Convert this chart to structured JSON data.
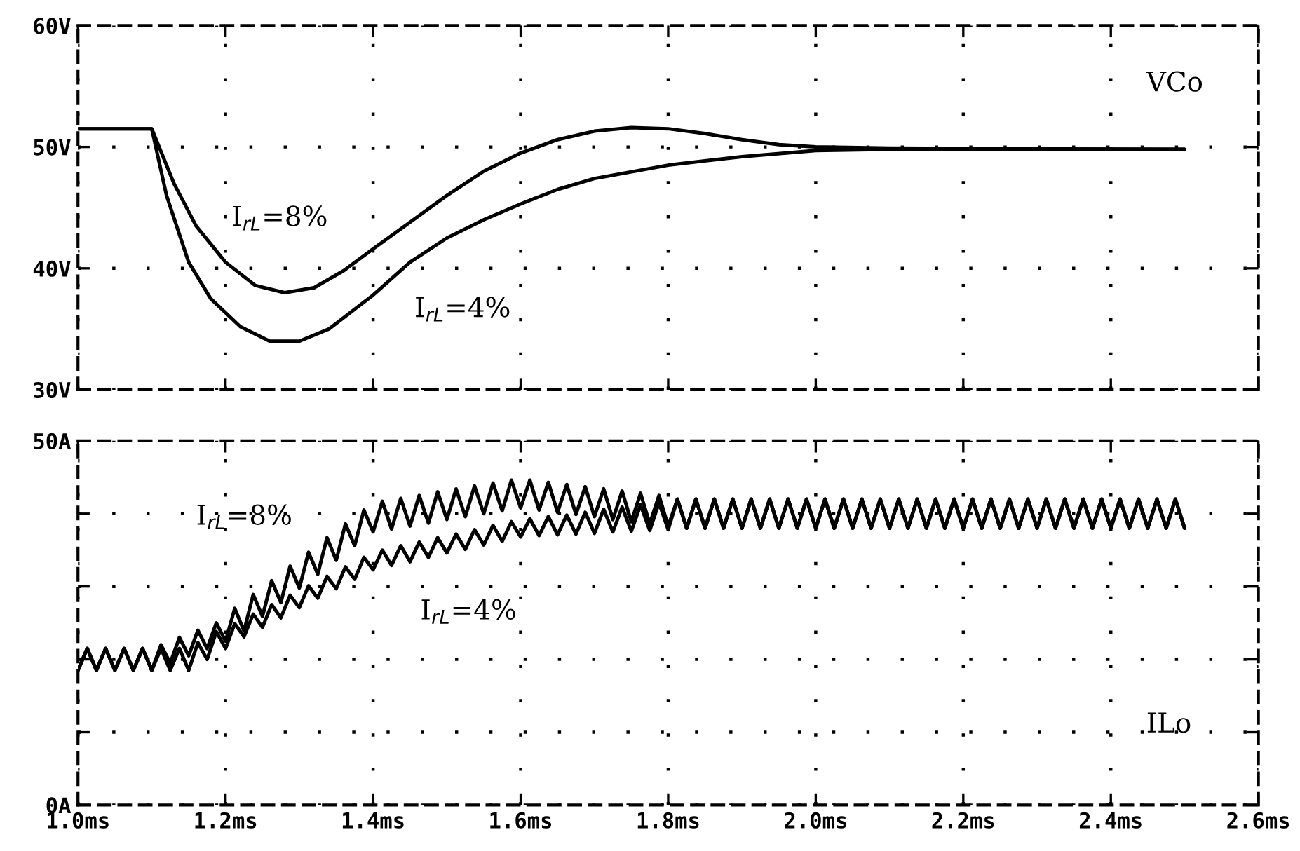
{
  "chart_data": [
    {
      "type": "line",
      "xlim": [
        1.0,
        2.6
      ],
      "xticks": [
        1.0,
        1.2,
        1.4,
        1.6,
        1.8,
        2.0,
        2.2,
        2.4,
        2.6
      ],
      "ylim": [
        30,
        60
      ],
      "yticks": [
        {
          "value": 30,
          "label": "30V"
        },
        {
          "value": 40,
          "label": "40V"
        },
        {
          "value": 50,
          "label": "50V"
        },
        {
          "value": 60,
          "label": "60V"
        }
      ],
      "tick_labels": "y",
      "grid": true,
      "line_style": "solid",
      "series": [
        {
          "name": "I$_{rL}$=8%",
          "color": "#000000",
          "x": [
            1.0,
            1.1,
            1.13,
            1.16,
            1.2,
            1.24,
            1.28,
            1.32,
            1.36,
            1.4,
            1.45,
            1.5,
            1.55,
            1.6,
            1.65,
            1.7,
            1.75,
            1.8,
            1.85,
            1.9,
            1.95,
            2.0,
            2.1,
            2.5
          ],
          "values": [
            51.5,
            51.5,
            47,
            43.5,
            40.5,
            38.6,
            38.0,
            38.4,
            39.8,
            41.6,
            43.8,
            46.0,
            48.0,
            49.5,
            50.6,
            51.3,
            51.6,
            51.5,
            51.1,
            50.6,
            50.2,
            50.0,
            49.9,
            49.8
          ]
        },
        {
          "name": "I$_{rL}$=4%",
          "color": "#000000",
          "x": [
            1.0,
            1.1,
            1.12,
            1.15,
            1.18,
            1.22,
            1.26,
            1.3,
            1.34,
            1.4,
            1.45,
            1.5,
            1.55,
            1.6,
            1.65,
            1.7,
            1.8,
            1.9,
            2.0,
            2.1,
            2.5
          ],
          "values": [
            51.5,
            51.5,
            46,
            40.5,
            37.5,
            35.2,
            34.0,
            34.0,
            35.0,
            37.8,
            40.5,
            42.5,
            44.0,
            45.3,
            46.5,
            47.4,
            48.5,
            49.2,
            49.7,
            49.8,
            49.8
          ]
        }
      ],
      "annotations": [
        "VCo"
      ]
    },
    {
      "type": "line",
      "xlim": [
        1.0,
        2.6
      ],
      "xticks": [
        {
          "value": 1.0,
          "label": "1.0ms"
        },
        {
          "value": 1.2,
          "label": "1.2ms"
        },
        {
          "value": 1.4,
          "label": "1.4ms"
        },
        {
          "value": 1.6,
          "label": "1.6ms"
        },
        {
          "value": 1.8,
          "label": "1.8ms"
        },
        {
          "value": 2.0,
          "label": "2.0ms"
        },
        {
          "value": 2.2,
          "label": "2.2ms"
        },
        {
          "value": 2.4,
          "label": "2.4ms"
        },
        {
          "value": 2.6,
          "label": "2.6ms"
        }
      ],
      "ylim": [
        0,
        50
      ],
      "yticks": [
        {
          "value": 0,
          "label": "0A"
        },
        {
          "value": 10,
          "label": null
        },
        {
          "value": 20,
          "label": null
        },
        {
          "value": 30,
          "label": null
        },
        {
          "value": 40,
          "label": null
        },
        {
          "value": 50,
          "label": "50A"
        }
      ],
      "grid": true,
      "line_style": "solid",
      "x": [
        1.0,
        1.0125,
        1.025,
        1.0375,
        1.05,
        1.0625,
        1.075,
        1.0875,
        1.1,
        1.1125,
        1.125,
        1.1375,
        1.15,
        1.1625,
        1.175,
        1.1875,
        1.2,
        1.2125,
        1.225,
        1.2375,
        1.25,
        1.2625,
        1.275,
        1.2875,
        1.3,
        1.3125,
        1.325,
        1.3375,
        1.35,
        1.3625,
        1.375,
        1.3875,
        1.4,
        1.4125,
        1.425,
        1.4375,
        1.45,
        1.4625,
        1.475,
        1.4875,
        1.5,
        1.5125,
        1.525,
        1.5375,
        1.55,
        1.5625,
        1.575,
        1.5875,
        1.6,
        1.6125,
        1.625,
        1.6375,
        1.65,
        1.6625,
        1.675,
        1.6875,
        1.7,
        1.7125,
        1.725,
        1.7375,
        1.75,
        1.7625,
        1.775,
        1.7875,
        1.8,
        1.8125,
        1.825,
        1.8375,
        1.85,
        1.8625,
        1.875,
        1.8875,
        1.9,
        1.9125,
        1.925,
        1.9375,
        1.95,
        1.9625,
        1.975,
        1.9875,
        2.0,
        2.0125,
        2.025,
        2.0375,
        2.05,
        2.0625,
        2.075,
        2.0875,
        2.1,
        2.1125,
        2.125,
        2.1375,
        2.15,
        2.1625,
        2.175,
        2.1875,
        2.2,
        2.2125,
        2.225,
        2.2375,
        2.25,
        2.2625,
        2.275,
        2.2875,
        2.3,
        2.3125,
        2.325,
        2.3375,
        2.35,
        2.3625,
        2.375,
        2.3875,
        2.4,
        2.4125,
        2.425,
        2.4375,
        2.45,
        2.4625,
        2.475,
        2.4875,
        2.5
      ],
      "series": [
        {
          "name": "I$_{rL}$=8%",
          "color": "#000000",
          "values": [
            18.5,
            21.5,
            18.5,
            21.5,
            18.5,
            21.5,
            18.5,
            21.5,
            18.5,
            22,
            19.5,
            23,
            20.5,
            24,
            21.5,
            25,
            22.5,
            27,
            23.9,
            28.9,
            25.9,
            30.8,
            27.8,
            32.8,
            29.8,
            34.7,
            31.7,
            36.7,
            33.6,
            38.6,
            35.6,
            40.5,
            37.5,
            41.7,
            37.9,
            42.1,
            38.3,
            42.5,
            38.7,
            43,
            39.2,
            43.4,
            39.6,
            43.8,
            40,
            44.2,
            40.4,
            44.6,
            40.8,
            44.6,
            40.5,
            44.3,
            40.2,
            44,
            39.9,
            43.7,
            39.6,
            43.4,
            39.2,
            43.1,
            38.9,
            42.8,
            38.6,
            42.5,
            38.3,
            42,
            38,
            42,
            38,
            42,
            38,
            42,
            38,
            42,
            38,
            42,
            38,
            42,
            38,
            42,
            38,
            42,
            38,
            42,
            38,
            42,
            38,
            42,
            38,
            42,
            38,
            42,
            38,
            42,
            38,
            42,
            38,
            42,
            38,
            42,
            38,
            42,
            38,
            42,
            38,
            42,
            38,
            42,
            38,
            42,
            38,
            42,
            38,
            42,
            38,
            42,
            38,
            42,
            38,
            42,
            38
          ]
        },
        {
          "name": "I$_{rL}$=4%",
          "color": "#000000",
          "values": [
            18.5,
            21.5,
            18.5,
            21.5,
            18.5,
            21.5,
            18.5,
            21.5,
            18.5,
            21.5,
            18.5,
            21.5,
            18.5,
            22.3,
            20,
            23.8,
            21.5,
            24.9,
            23.1,
            26.2,
            24.4,
            27.5,
            25.7,
            28.8,
            27.1,
            30.1,
            28.4,
            31.4,
            29.7,
            32.7,
            31.0,
            34.0,
            32.3,
            35.0,
            32.9,
            35.6,
            33.4,
            36.1,
            34.0,
            36.7,
            34.6,
            37.2,
            35.1,
            37.8,
            35.7,
            38.4,
            36.2,
            38.9,
            36.8,
            39.3,
            37.0,
            39.6,
            37.1,
            39.8,
            37.2,
            40.2,
            37.3,
            40.6,
            37.5,
            40.9,
            37.6,
            41.2,
            37.7,
            41.5,
            37.8,
            42,
            38,
            42,
            38,
            42,
            38,
            42,
            38,
            42,
            38,
            42,
            38,
            42,
            38,
            42,
            38,
            42,
            38,
            42,
            38,
            42,
            38,
            42,
            38,
            42,
            38,
            42,
            38,
            42,
            38,
            42,
            38,
            42,
            38,
            42,
            38,
            42,
            38,
            42,
            38,
            42,
            38,
            42,
            38,
            42,
            38,
            42,
            38,
            42,
            38,
            42,
            38,
            42,
            38,
            42,
            38
          ]
        }
      ],
      "annotations": [
        "ILo"
      ]
    }
  ]
}
